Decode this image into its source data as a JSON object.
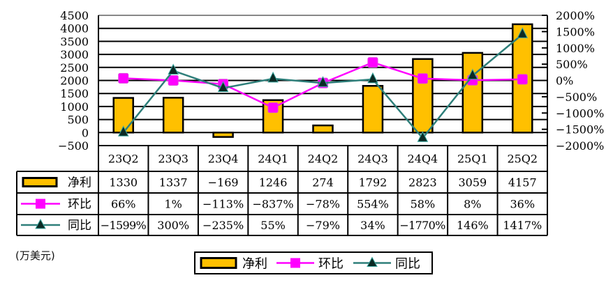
{
  "chart_data": {
    "type": "bar+line",
    "title": "",
    "unit_label": "(万美元)",
    "categories": [
      "23Q2",
      "23Q3",
      "23Q4",
      "24Q1",
      "24Q2",
      "24Q3",
      "24Q4",
      "25Q1",
      "25Q2"
    ],
    "series": [
      {
        "name": "净利",
        "type": "bar",
        "axis": "left",
        "color": "#FFC000",
        "values": [
          1330,
          1337,
          -169,
          1246,
          274,
          1792,
          2823,
          3059,
          4157
        ],
        "labels": [
          "1330",
          "1337",
          "−169",
          "1246",
          "274",
          "1792",
          "2823",
          "3059",
          "4157"
        ]
      },
      {
        "name": "环比",
        "type": "line",
        "axis": "right",
        "color": "#FF00FF",
        "marker": "square",
        "values": [
          66,
          1,
          -113,
          -837,
          -78,
          554,
          58,
          8,
          36
        ],
        "labels": [
          "66%",
          "1%",
          "−113%",
          "−837%",
          "−78%",
          "554%",
          "58%",
          "8%",
          "36%"
        ]
      },
      {
        "name": "同比",
        "type": "line",
        "axis": "right",
        "color": "#2E7F7A",
        "marker": "triangle",
        "values": [
          -1599,
          300,
          -235,
          55,
          -79,
          34,
          -1770,
          146,
          1417
        ],
        "labels": [
          "−1599%",
          "300%",
          "−235%",
          "55%",
          "−79%",
          "34%",
          "−1770%",
          "146%",
          "1417%"
        ]
      }
    ],
    "left_axis": {
      "min": -500,
      "max": 4500,
      "step": 500,
      "ticks": [
        "4500",
        "4000",
        "3500",
        "3000",
        "2500",
        "2000",
        "1500",
        "1000",
        "500",
        "0",
        "−500"
      ]
    },
    "right_axis": {
      "min": -2000,
      "max": 2000,
      "step": 500,
      "ticks": [
        "2000%",
        "1500%",
        "1000%",
        "500%",
        "0%",
        "−500%",
        "−1000%",
        "−1500%",
        "−2000%"
      ]
    },
    "grid": true,
    "legend_position": "bottom",
    "data_table": true
  },
  "legend": {
    "items": [
      "净利",
      "环比",
      "同比"
    ]
  }
}
